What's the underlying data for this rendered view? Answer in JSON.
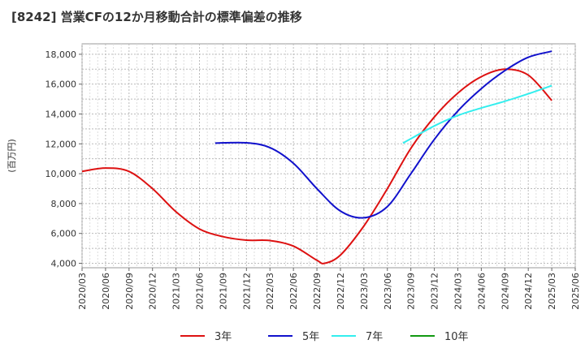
{
  "chart_data": {
    "type": "line",
    "title": "[8242]  営業CFの12か月移動合計の標準偏差の推移",
    "ylabel": "(百万円)",
    "xlabel": "",
    "ylim": [
      3700,
      18700
    ],
    "yticks": [
      4000,
      6000,
      8000,
      10000,
      12000,
      14000,
      16000,
      18000
    ],
    "ytick_labels": [
      "4,000",
      "6,000",
      "8,000",
      "10,000",
      "12,000",
      "14,000",
      "16,000",
      "18,000"
    ],
    "x_categories": [
      "2020/03",
      "2020/06",
      "2020/09",
      "2020/12",
      "2021/03",
      "2021/06",
      "2021/09",
      "2021/12",
      "2022/03",
      "2022/06",
      "2022/09",
      "2022/12",
      "2023/03",
      "2023/06",
      "2023/09",
      "2023/12",
      "2024/03",
      "2024/06",
      "2024/09",
      "2024/12",
      "2025/03",
      "2025/06"
    ],
    "grid": true,
    "legend_position": "bottom",
    "series": [
      {
        "name": "3年",
        "color": "#dd1111",
        "points": [
          [
            "2020/03",
            10150
          ],
          [
            "2020/06",
            10380
          ],
          [
            "2020/09",
            10150
          ],
          [
            "2020/12",
            9000
          ],
          [
            "2021/03",
            7450
          ],
          [
            "2021/06",
            6300
          ],
          [
            "2021/09",
            5780
          ],
          [
            "2021/12",
            5550
          ],
          [
            "2022/03",
            5520
          ],
          [
            "2022/06",
            5150
          ],
          [
            "2022/09",
            4200
          ],
          [
            "2022/10",
            4000
          ],
          [
            "2022/12",
            4550
          ],
          [
            "2023/03",
            6500
          ],
          [
            "2023/06",
            9000
          ],
          [
            "2023/09",
            11700
          ],
          [
            "2023/12",
            13800
          ],
          [
            "2024/03",
            15400
          ],
          [
            "2024/06",
            16500
          ],
          [
            "2024/09",
            17000
          ],
          [
            "2024/12",
            16600
          ],
          [
            "2025/03",
            14900
          ]
        ]
      },
      {
        "name": "5年",
        "color": "#1111cc",
        "points": [
          [
            "2021/08",
            12050
          ],
          [
            "2021/12",
            12070
          ],
          [
            "2022/03",
            11750
          ],
          [
            "2022/06",
            10700
          ],
          [
            "2022/09",
            9000
          ],
          [
            "2022/12",
            7500
          ],
          [
            "2023/03",
            7050
          ],
          [
            "2023/06",
            7800
          ],
          [
            "2023/09",
            10000
          ],
          [
            "2023/12",
            12300
          ],
          [
            "2024/03",
            14200
          ],
          [
            "2024/06",
            15700
          ],
          [
            "2024/09",
            16900
          ],
          [
            "2024/12",
            17800
          ],
          [
            "2025/03",
            18200
          ]
        ]
      },
      {
        "name": "7年",
        "color": "#33eeee",
        "points": [
          [
            "2023/08",
            12050
          ],
          [
            "2023/12",
            13200
          ],
          [
            "2024/03",
            13900
          ],
          [
            "2024/06",
            14400
          ],
          [
            "2024/09",
            14850
          ],
          [
            "2024/12",
            15350
          ],
          [
            "2025/03",
            15900
          ]
        ]
      },
      {
        "name": "10年",
        "color": "#119911",
        "points": []
      }
    ]
  }
}
